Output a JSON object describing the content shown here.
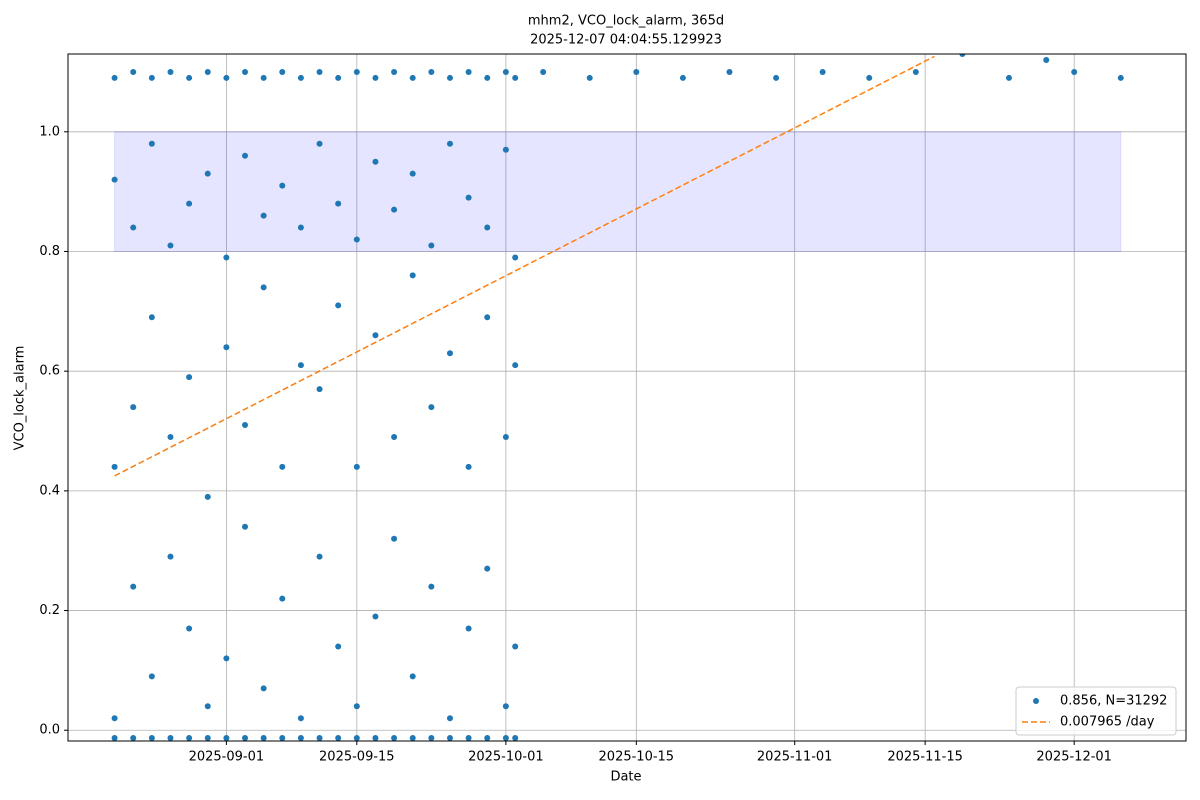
{
  "chart_data": {
    "type": "scatter",
    "title": "mhm2, VCO_lock_alarm, 365d",
    "subtitle": "2025-12-07 04:04:55.129923",
    "x_label": "Date",
    "y_label": "VCO_lock_alarm",
    "xlim": [
      "2025-08-15",
      "2025-12-13"
    ],
    "ylim": [
      -0.018,
      1.13
    ],
    "xticks": [
      "2025-09-01",
      "2025-09-15",
      "2025-10-01",
      "2025-10-15",
      "2025-11-01",
      "2025-11-15",
      "2025-12-01"
    ],
    "yticks": [
      {
        "value": 0,
        "label": "0.0"
      },
      0.2,
      0.4,
      0.6,
      0.8,
      {
        "value": 1,
        "label": "1.0"
      }
    ],
    "grid": true,
    "legend_position": "lower right",
    "band": {
      "x": [
        "2025-08-20",
        "2025-12-06"
      ],
      "y": [
        0.8,
        1.0
      ],
      "color": "rgba(0,0,255,0.1)"
    },
    "series": [
      {
        "name": "0.856, N=31292",
        "color": "#1f77b4",
        "kind": "points",
        "x": [
          "2025-08-20",
          "2025-08-20",
          "2025-08-20",
          "2025-08-20",
          "2025-08-20",
          "2025-08-22",
          "2025-08-22",
          "2025-08-22",
          "2025-08-22",
          "2025-08-22",
          "2025-08-24",
          "2025-08-24",
          "2025-08-24",
          "2025-08-24",
          "2025-08-24",
          "2025-08-26",
          "2025-08-26",
          "2025-08-26",
          "2025-08-26",
          "2025-08-26",
          "2025-08-28",
          "2025-08-28",
          "2025-08-28",
          "2025-08-28",
          "2025-08-28",
          "2025-08-30",
          "2025-08-30",
          "2025-08-30",
          "2025-08-30",
          "2025-08-30",
          "2025-09-01",
          "2025-09-01",
          "2025-09-01",
          "2025-09-01",
          "2025-09-01",
          "2025-09-03",
          "2025-09-03",
          "2025-09-03",
          "2025-09-03",
          "2025-09-03",
          "2025-09-05",
          "2025-09-05",
          "2025-09-05",
          "2025-09-05",
          "2025-09-05",
          "2025-09-07",
          "2025-09-07",
          "2025-09-07",
          "2025-09-07",
          "2025-09-07",
          "2025-09-09",
          "2025-09-09",
          "2025-09-09",
          "2025-09-09",
          "2025-09-09",
          "2025-09-11",
          "2025-09-11",
          "2025-09-11",
          "2025-09-11",
          "2025-09-11",
          "2025-09-13",
          "2025-09-13",
          "2025-09-13",
          "2025-09-13",
          "2025-09-13",
          "2025-09-15",
          "2025-09-15",
          "2025-09-15",
          "2025-09-15",
          "2025-09-15",
          "2025-09-17",
          "2025-09-17",
          "2025-09-17",
          "2025-09-17",
          "2025-09-17",
          "2025-09-19",
          "2025-09-19",
          "2025-09-19",
          "2025-09-19",
          "2025-09-19",
          "2025-09-21",
          "2025-09-21",
          "2025-09-21",
          "2025-09-21",
          "2025-09-21",
          "2025-09-23",
          "2025-09-23",
          "2025-09-23",
          "2025-09-23",
          "2025-09-23",
          "2025-09-25",
          "2025-09-25",
          "2025-09-25",
          "2025-09-25",
          "2025-09-25",
          "2025-09-27",
          "2025-09-27",
          "2025-09-27",
          "2025-09-27",
          "2025-09-27",
          "2025-09-29",
          "2025-09-29",
          "2025-09-29",
          "2025-09-29",
          "2025-09-29",
          "2025-10-01",
          "2025-10-01",
          "2025-10-01",
          "2025-10-01",
          "2025-10-01",
          "2025-10-02",
          "2025-10-02",
          "2025-10-02",
          "2025-10-02",
          "2025-10-02",
          "2025-10-05",
          "2025-10-10",
          "2025-10-15",
          "2025-10-20",
          "2025-10-25",
          "2025-10-30",
          "2025-11-04",
          "2025-11-09",
          "2025-11-14",
          "2025-11-19",
          "2025-11-24",
          "2025-11-28",
          "2025-12-01",
          "2025-12-06"
        ],
        "values": [
          -0.013,
          0.02,
          0.44,
          0.92,
          1.09,
          -0.013,
          0.24,
          0.54,
          0.84,
          1.1,
          -0.013,
          0.09,
          0.69,
          0.98,
          1.09,
          -0.013,
          0.29,
          0.49,
          0.81,
          1.1,
          -0.013,
          0.17,
          0.59,
          0.88,
          1.09,
          -0.013,
          0.04,
          0.39,
          0.93,
          1.1,
          -0.013,
          0.12,
          0.64,
          0.79,
          1.09,
          -0.013,
          0.34,
          0.51,
          0.96,
          1.1,
          -0.013,
          0.07,
          0.74,
          0.86,
          1.09,
          -0.013,
          0.22,
          0.44,
          0.91,
          1.1,
          -0.013,
          0.02,
          0.61,
          0.84,
          1.09,
          -0.013,
          0.29,
          0.57,
          0.98,
          1.1,
          -0.013,
          0.14,
          0.71,
          0.88,
          1.09,
          -0.013,
          0.04,
          0.44,
          0.82,
          1.1,
          -0.013,
          0.19,
          0.66,
          0.95,
          1.09,
          -0.013,
          0.32,
          0.49,
          0.87,
          1.1,
          -0.013,
          0.09,
          0.76,
          0.93,
          1.09,
          -0.013,
          0.24,
          0.54,
          0.81,
          1.1,
          -0.013,
          0.02,
          0.63,
          0.98,
          1.09,
          -0.013,
          0.17,
          0.44,
          0.89,
          1.1,
          -0.013,
          0.27,
          0.69,
          0.84,
          1.09,
          -0.013,
          0.04,
          0.49,
          0.97,
          1.1,
          -0.013,
          0.14,
          0.61,
          0.79,
          1.09,
          1.1,
          1.09,
          1.1,
          1.09,
          1.1,
          1.09,
          1.1,
          1.09,
          1.1,
          1.13,
          1.09,
          1.12,
          1.1,
          1.09
        ]
      },
      {
        "name": "0.007965 /day",
        "color": "#ff7f0e",
        "kind": "dashed-line",
        "x": [
          "2025-08-20",
          "2025-11-16"
        ],
        "values": [
          0.425,
          1.126
        ]
      }
    ]
  }
}
